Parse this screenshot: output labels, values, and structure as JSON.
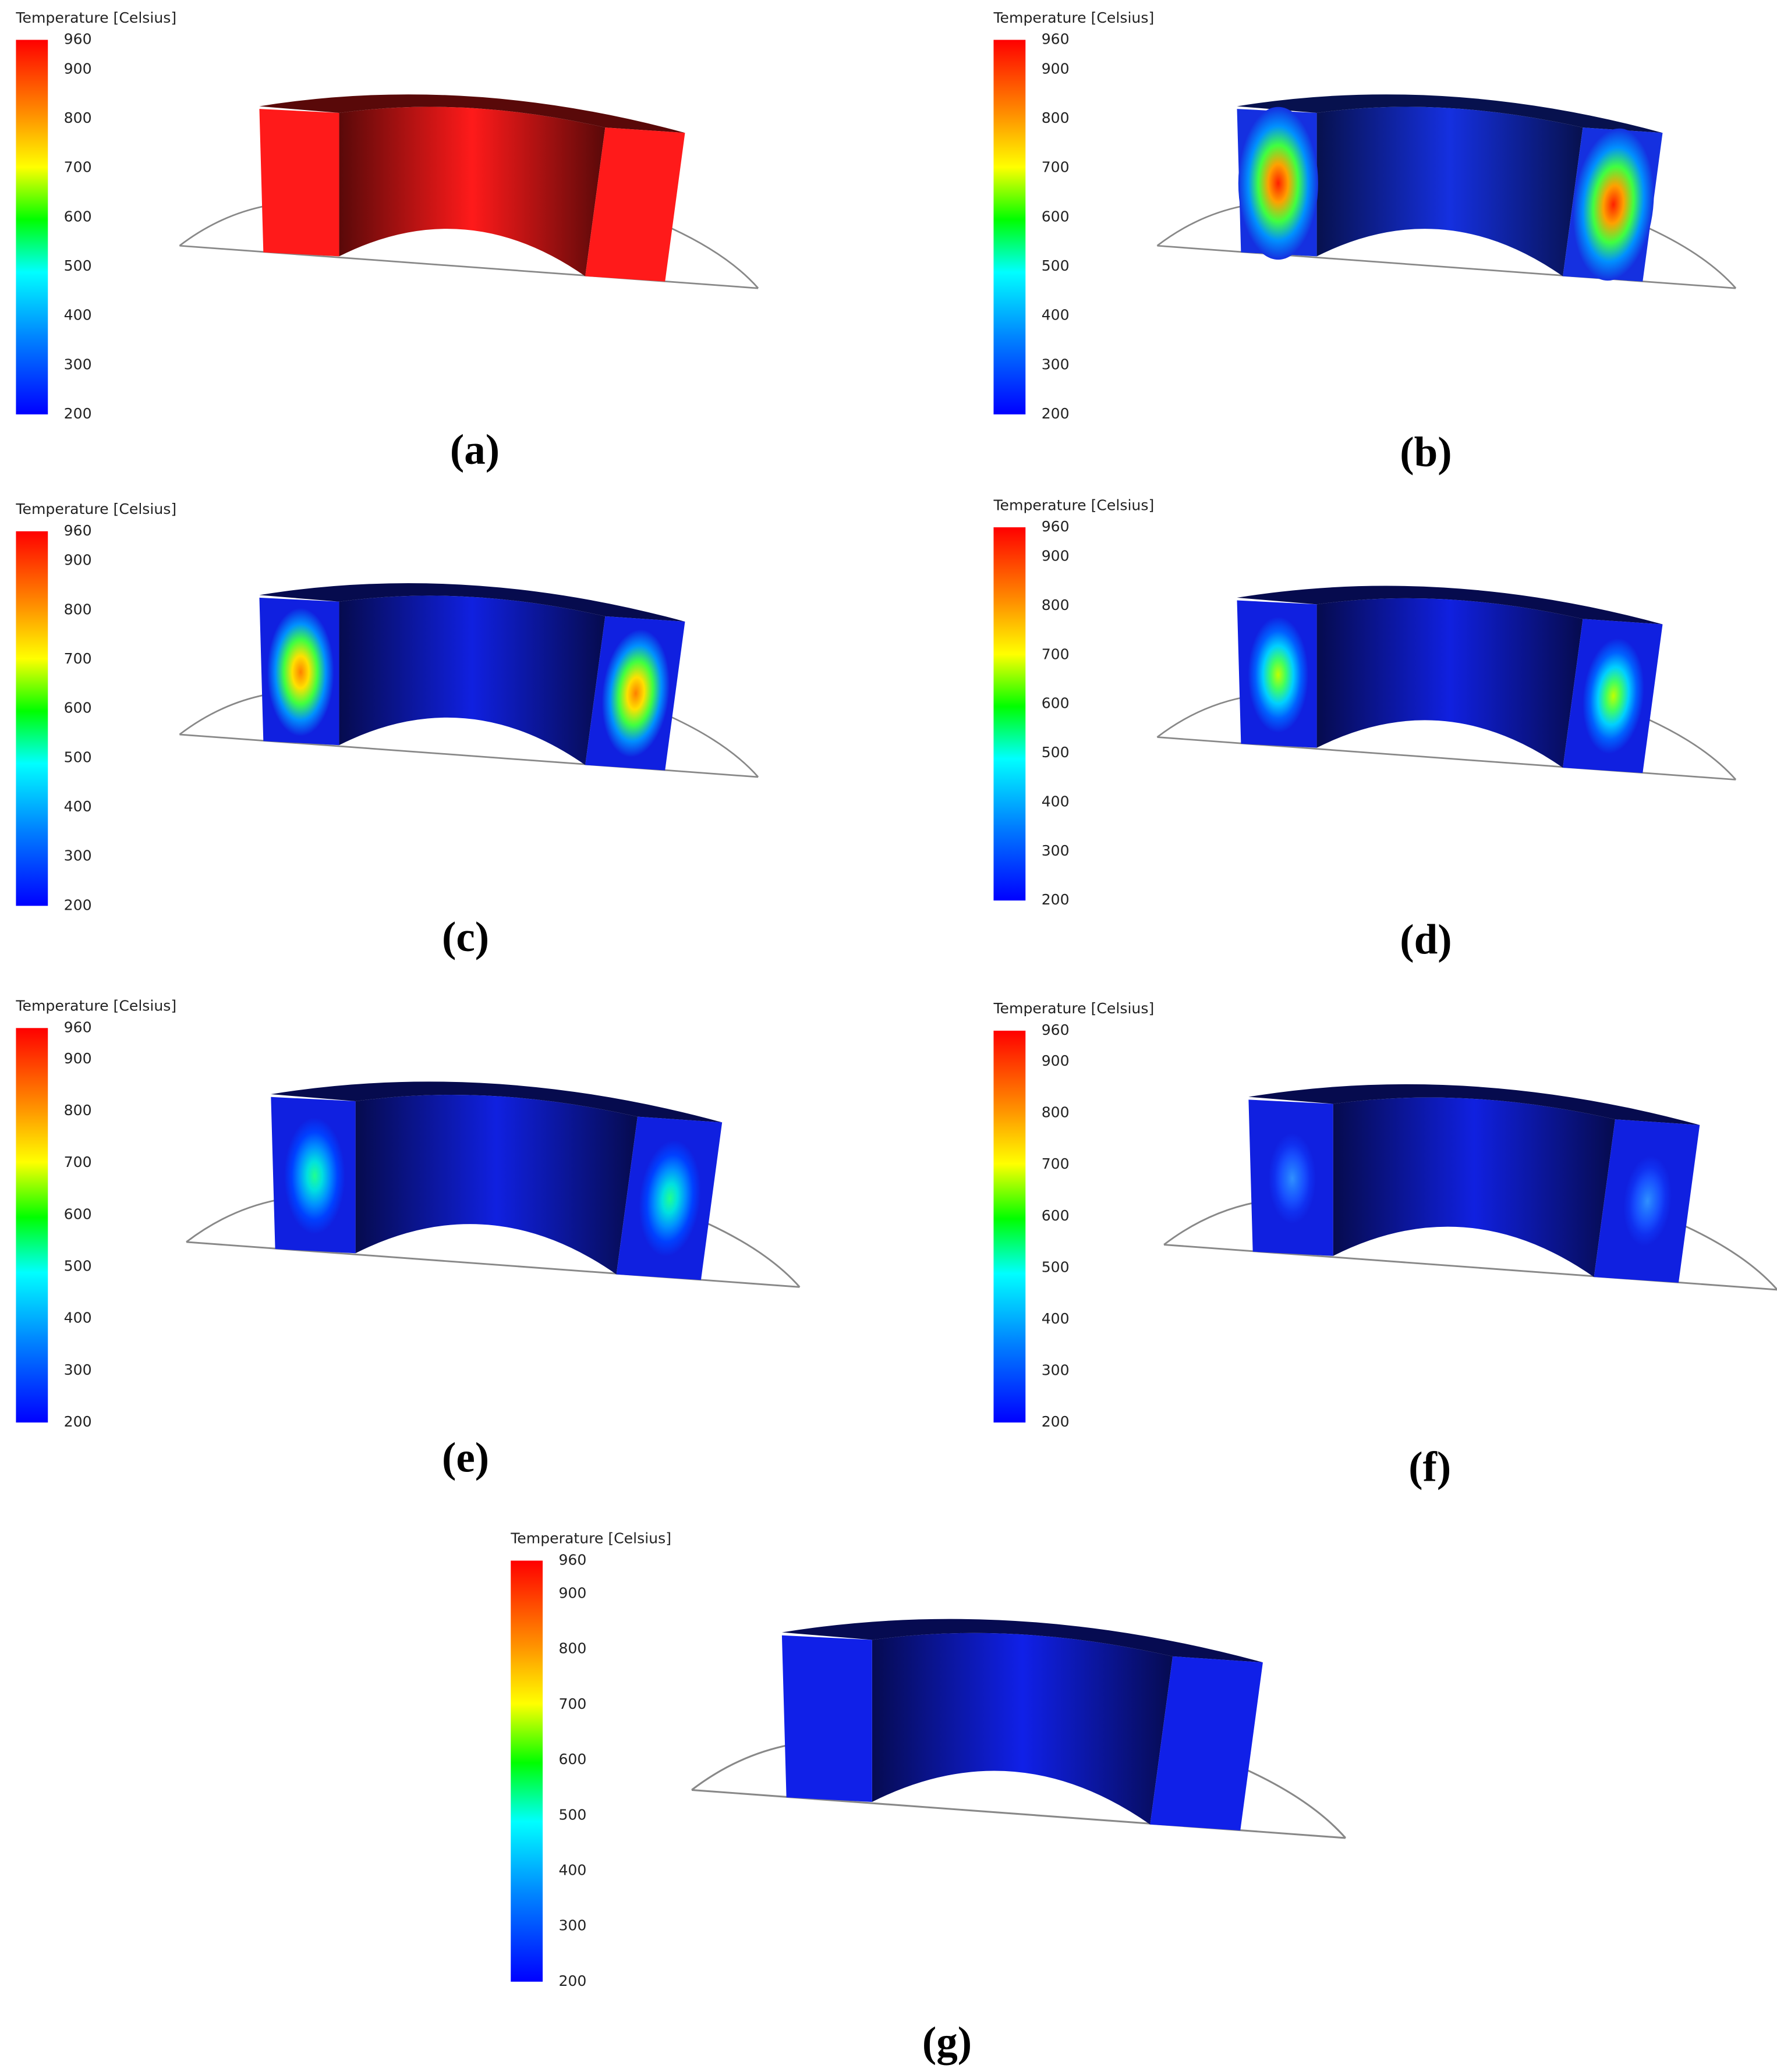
{
  "panels": [
    {
      "legend_title": "Temperature [Celsius]",
      "ticks": [
        960,
        900,
        800,
        700,
        600,
        500,
        400,
        300,
        200
      ],
      "label": "(a)"
    },
    {
      "legend_title": "Temperature [Celsius]",
      "ticks": [
        960,
        900,
        800,
        700,
        600,
        500,
        400,
        300,
        200
      ],
      "label": "(b)"
    },
    {
      "legend_title": "Temperature [Celsius]",
      "ticks": [
        960,
        900,
        800,
        700,
        600,
        500,
        400,
        300,
        200
      ],
      "label": "(c)"
    },
    {
      "legend_title": "Temperature [Celsius]",
      "ticks": [
        960,
        900,
        800,
        700,
        600,
        500,
        400,
        300,
        200
      ],
      "label": "(d)"
    },
    {
      "legend_title": "Temperature [Celsius]",
      "ticks": [
        960,
        900,
        800,
        700,
        600,
        500,
        400,
        300,
        200
      ],
      "label": "(e)"
    },
    {
      "legend_title": "Temperature [Celsius]",
      "ticks": [
        960,
        900,
        800,
        700,
        600,
        500,
        400,
        300,
        200
      ],
      "label": "(f)"
    },
    {
      "legend_title": "Temperature [Celsius]",
      "ticks": [
        960,
        900,
        800,
        700,
        600,
        500,
        400,
        300,
        200
      ],
      "label": "(g)"
    }
  ]
}
